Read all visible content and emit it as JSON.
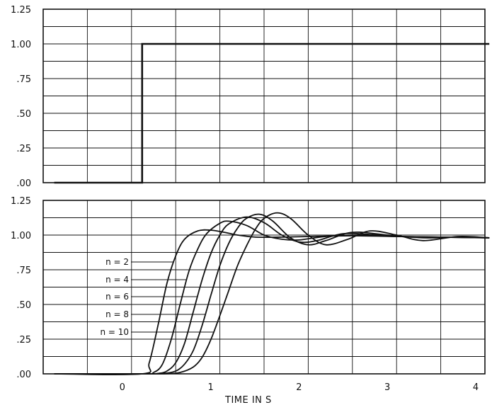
{
  "chart_data": [
    {
      "type": "line",
      "panel": "top",
      "title": "",
      "xlabel": "",
      "ylabel": "",
      "xlim": [
        -0.875,
        4.05
      ],
      "ylim": [
        0,
        1.25
      ],
      "yticks": [
        ".00",
        ".25",
        ".50",
        ".75",
        "1.00",
        "1.25"
      ],
      "grid": true,
      "series": [
        {
          "x": [
            -0.875,
            0.12,
            0.12,
            4.05
          ],
          "y": [
            0.0,
            0.0,
            1.0,
            1.0
          ]
        }
      ]
    },
    {
      "type": "line",
      "panel": "bottom",
      "title": "",
      "xlabel": "TIME IN  S",
      "ylabel": "",
      "xlim": [
        -0.875,
        4.05
      ],
      "ylim": [
        0,
        1.25
      ],
      "xticks": [
        "0",
        "1",
        "2",
        "3",
        "4"
      ],
      "yticks": [
        ".00",
        ".25",
        ".50",
        ".75",
        "1.00",
        "1.25"
      ],
      "grid": true,
      "series": [
        {
          "name": "n = 2",
          "x": [
            -0.875,
            0.12,
            0.2,
            0.3,
            0.4,
            0.5,
            0.6,
            0.75,
            0.9,
            1.05,
            1.2,
            1.4,
            1.7,
            2.0,
            2.5,
            3.0,
            3.5,
            4.05
          ],
          "y": [
            0,
            0,
            0.08,
            0.35,
            0.65,
            0.85,
            0.97,
            1.03,
            1.035,
            1.02,
            1.0,
            0.985,
            0.985,
            0.99,
            0.995,
            0.99,
            0.985,
            0.98
          ]
        },
        {
          "name": "n = 4",
          "x": [
            -0.875,
            0.12,
            0.25,
            0.35,
            0.45,
            0.55,
            0.65,
            0.75,
            0.85,
            1.0,
            1.1,
            1.3,
            1.5,
            1.7,
            1.9,
            2.2,
            2.6,
            3.0,
            3.5,
            4.05
          ],
          "y": [
            0,
            0,
            0.01,
            0.07,
            0.25,
            0.5,
            0.74,
            0.9,
            1.01,
            1.085,
            1.1,
            1.07,
            1.0,
            0.97,
            0.965,
            0.99,
            1.0,
            0.99,
            0.985,
            0.98
          ]
        },
        {
          "name": "n = 6",
          "x": [
            -0.875,
            0.12,
            0.3,
            0.4,
            0.5,
            0.6,
            0.7,
            0.8,
            0.9,
            1.0,
            1.1,
            1.3,
            1.5,
            1.7,
            1.9,
            2.1,
            2.4,
            2.8,
            3.2,
            3.6,
            4.05
          ],
          "y": [
            0,
            0,
            0.003,
            0.02,
            0.08,
            0.22,
            0.45,
            0.68,
            0.87,
            1.0,
            1.08,
            1.13,
            1.09,
            1.0,
            0.95,
            0.96,
            1.01,
            1.0,
            0.985,
            0.985,
            0.98
          ]
        },
        {
          "name": "n = 8",
          "x": [
            -0.875,
            0.12,
            0.35,
            0.5,
            0.6,
            0.7,
            0.8,
            0.9,
            1.0,
            1.1,
            1.2,
            1.3,
            1.45,
            1.6,
            1.8,
            2.0,
            2.2,
            2.5,
            2.9,
            3.3,
            3.7,
            4.05
          ],
          "y": [
            0,
            0,
            0.002,
            0.02,
            0.07,
            0.17,
            0.35,
            0.57,
            0.78,
            0.94,
            1.05,
            1.12,
            1.15,
            1.1,
            0.98,
            0.93,
            0.96,
            1.02,
            1.0,
            0.98,
            0.985,
            0.98
          ]
        },
        {
          "name": "n = 10",
          "x": [
            -0.875,
            0.12,
            0.4,
            0.55,
            0.7,
            0.8,
            0.9,
            1.0,
            1.1,
            1.2,
            1.3,
            1.4,
            1.5,
            1.65,
            1.8,
            2.0,
            2.2,
            2.45,
            2.7,
            3.0,
            3.3,
            3.7,
            4.05
          ],
          "y": [
            0,
            0,
            0.001,
            0.01,
            0.05,
            0.12,
            0.25,
            0.42,
            0.6,
            0.78,
            0.92,
            1.04,
            1.12,
            1.16,
            1.12,
            1.0,
            0.93,
            0.97,
            1.03,
            1.0,
            0.96,
            0.99,
            0.98
          ]
        }
      ]
    }
  ]
}
